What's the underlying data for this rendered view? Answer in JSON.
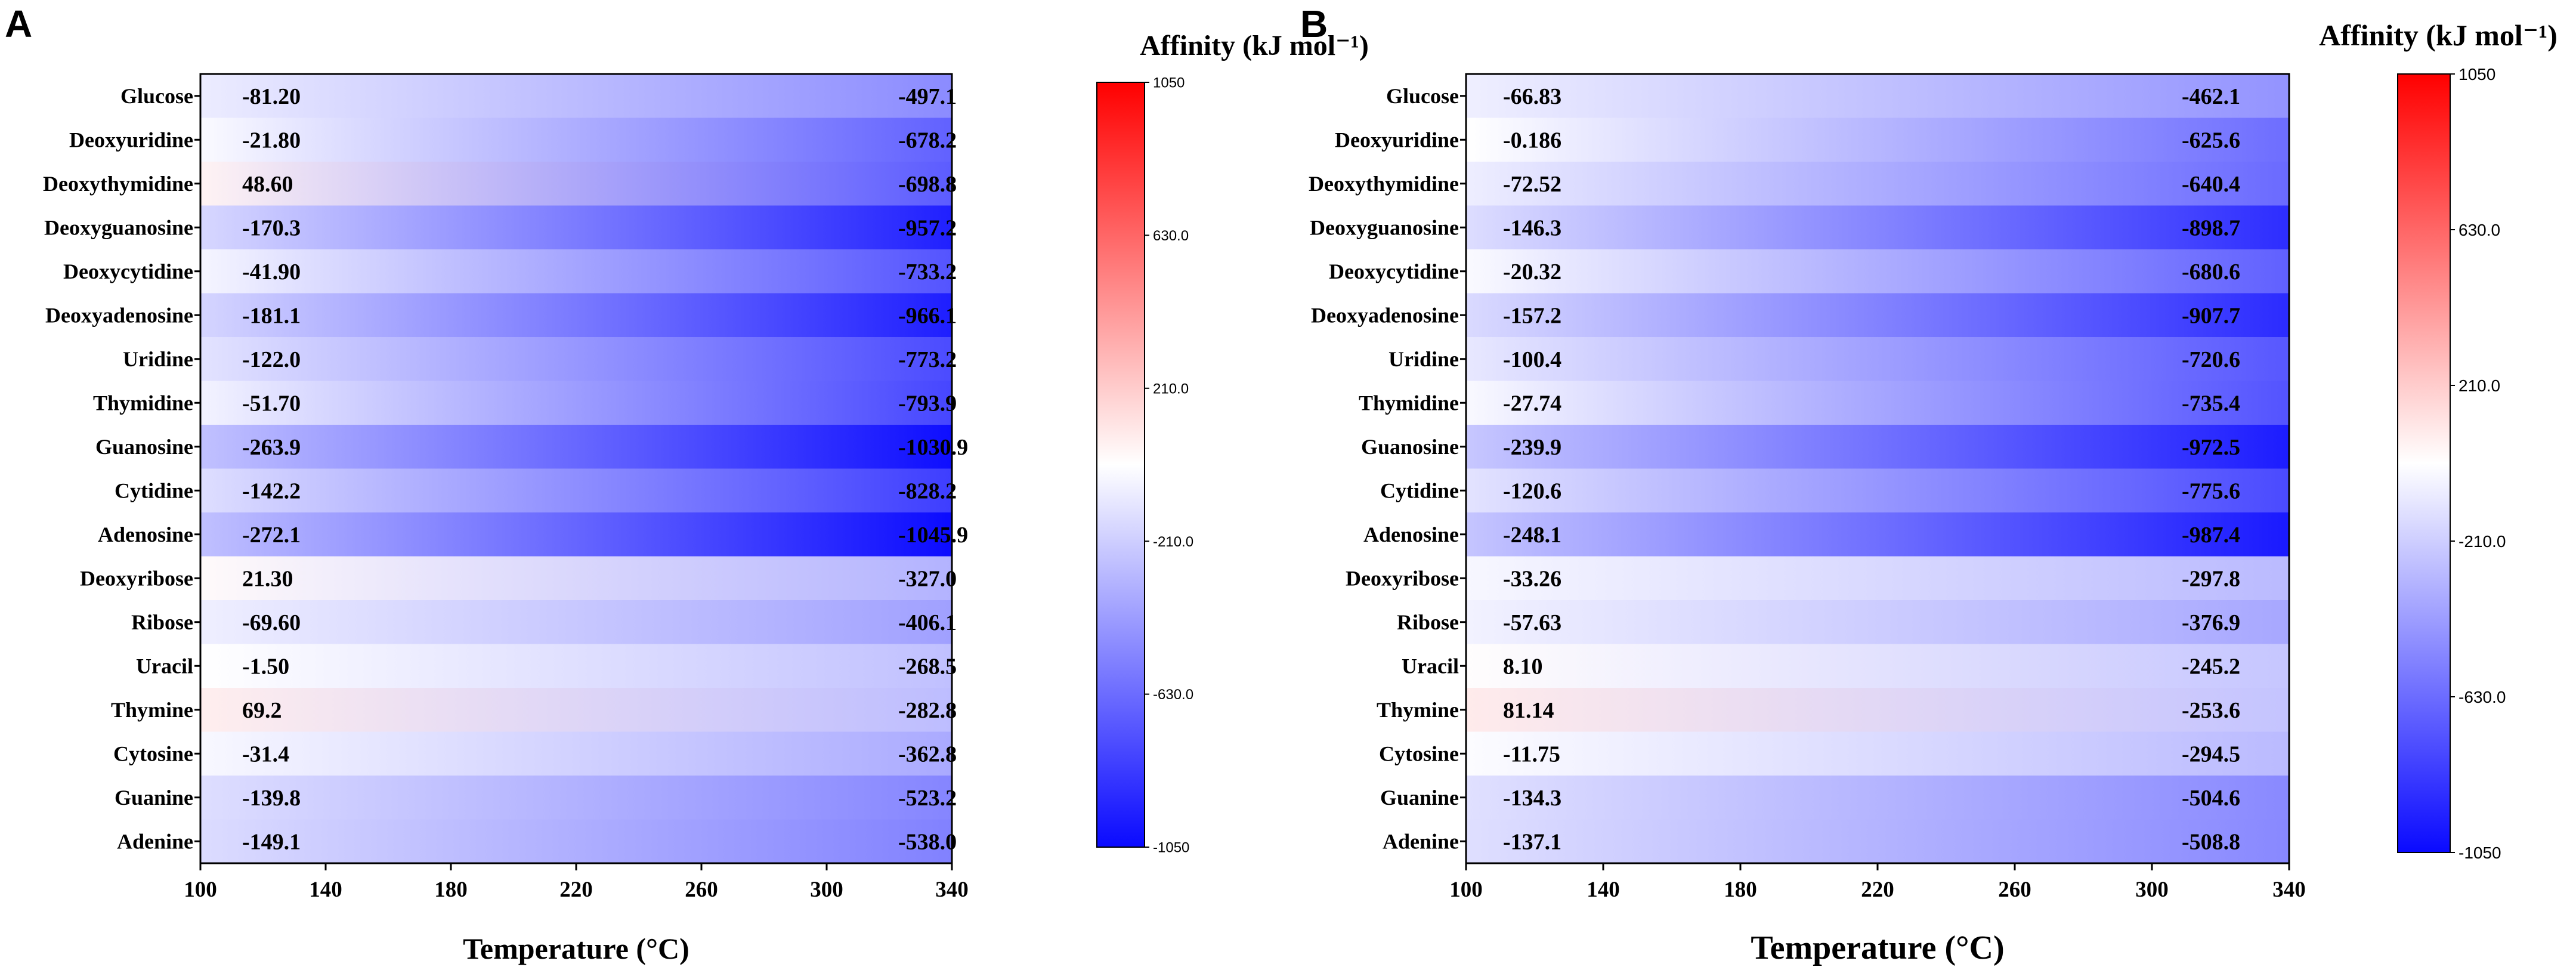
{
  "colors": {
    "min": "#0a0aff",
    "mid": "#ffffff",
    "max": "#ff0000",
    "axis": "#000000"
  },
  "chart_data": [
    {
      "type": "heatmap",
      "panel": "A",
      "title": "Affinity (kJ mol⁻¹)",
      "xlabel": "Temperature (°C)",
      "ylabel": "",
      "xlim": [
        100,
        340
      ],
      "x_ticks": [
        "100",
        "140",
        "180",
        "220",
        "260",
        "300",
        "340"
      ],
      "color_range": [
        -1050,
        1050
      ],
      "colorbar_ticks": [
        "1050",
        "630.0",
        "210.0",
        "-210.0",
        "-630.0",
        "-1050"
      ],
      "rows": [
        "Glucose",
        "Deoxyuridine",
        "Deoxythymidine",
        "Deoxyguanosine",
        "Deoxycytidine",
        "Deoxyadenosine",
        "Uridine",
        "Thymidine",
        "Guanosine",
        "Cytidine",
        "Adenosine",
        "Deoxyribose",
        "Ribose",
        "Uracil",
        "Thymine",
        "Cytosine",
        "Guanine",
        "Adenine"
      ],
      "values_at_100C": [
        "-81.20",
        "-21.80",
        "48.60",
        "-170.3",
        "-41.90",
        "-181.1",
        "-122.0",
        "-51.70",
        "-263.9",
        "-142.2",
        "-272.1",
        "21.30",
        "-69.60",
        "-1.50",
        "69.2",
        "-31.4",
        "-139.8",
        "-149.1"
      ],
      "values_at_340C": [
        "-497.1",
        "-678.2",
        "-698.8",
        "-957.2",
        "-733.2",
        "-966.1",
        "-773.2",
        "-793.9",
        "-1030.9",
        "-828.2",
        "-1045.9",
        "-327.0",
        "-406.1",
        "-268.5",
        "-282.8",
        "-362.8",
        "-523.2",
        "-538.0"
      ]
    },
    {
      "type": "heatmap",
      "panel": "B",
      "title": "Affinity (kJ mol⁻¹)",
      "xlabel": "Temperature (°C)",
      "ylabel": "",
      "xlim": [
        100,
        340
      ],
      "x_ticks": [
        "100",
        "140",
        "180",
        "220",
        "260",
        "300",
        "340"
      ],
      "color_range": [
        -1050,
        1050
      ],
      "colorbar_ticks": [
        "1050",
        "630.0",
        "210.0",
        "-210.0",
        "-630.0",
        "-1050"
      ],
      "rows": [
        "Glucose",
        "Deoxyuridine",
        "Deoxythymidine",
        "Deoxyguanosine",
        "Deoxycytidine",
        "Deoxyadenosine",
        "Uridine",
        "Thymidine",
        "Guanosine",
        "Cytidine",
        "Adenosine",
        "Deoxyribose",
        "Ribose",
        "Uracil",
        "Thymine",
        "Cytosine",
        "Guanine",
        "Adenine"
      ],
      "values_at_100C": [
        "-66.83",
        "-0.186",
        "-72.52",
        "-146.3",
        "-20.32",
        "-157.2",
        "-100.4",
        "-27.74",
        "-239.9",
        "-120.6",
        "-248.1",
        "-33.26",
        "-57.63",
        "8.10",
        "81.14",
        "-11.75",
        "-134.3",
        "-137.1"
      ],
      "values_at_340C": [
        "-462.1",
        "-625.6",
        "-640.4",
        "-898.7",
        "-680.6",
        "-907.7",
        "-720.6",
        "-735.4",
        "-972.5",
        "-775.6",
        "-987.4",
        "-297.8",
        "-376.9",
        "-245.2",
        "-253.6",
        "-294.5",
        "-504.6",
        "-508.8"
      ]
    }
  ]
}
